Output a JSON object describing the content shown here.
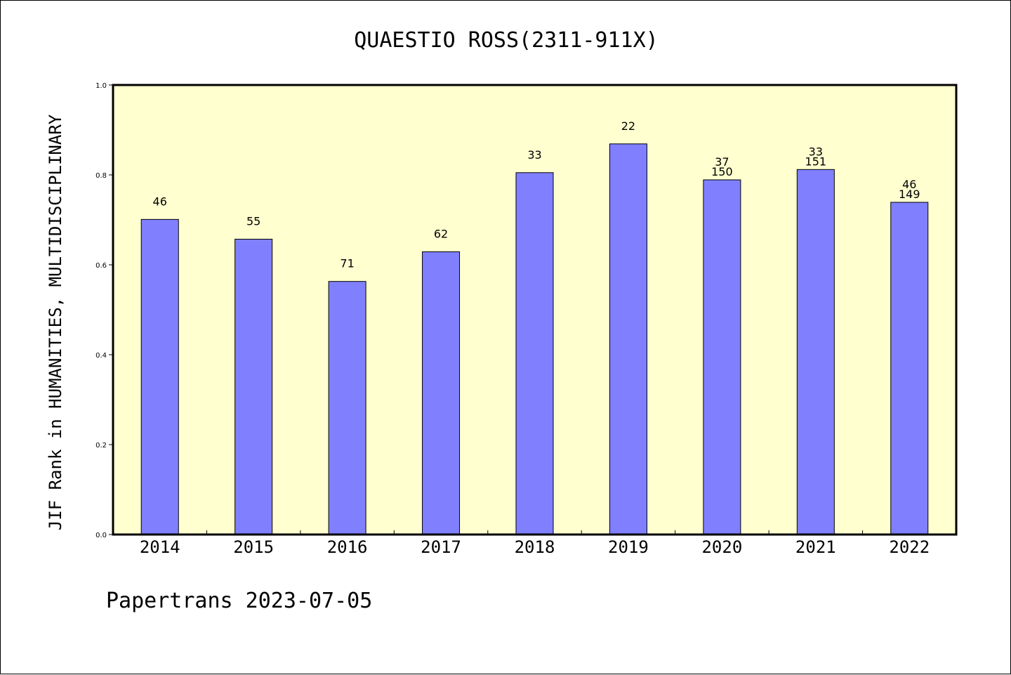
{
  "colors": {
    "plot_background": "#ffffd0",
    "bar_fill": "#8080ff",
    "bar_stroke": "#000000",
    "frame": "#000000"
  },
  "footer": {
    "text": "Papertrans 2023-07-05"
  },
  "chart_data": {
    "type": "bar",
    "title": "QUAESTIO ROSS(2311-911X)",
    "xlabel": "",
    "ylabel": "JIF Rank in HUMANITIES, MULTIDISCIPLINARY",
    "ylim": [
      0.0,
      1.0
    ],
    "yticks": [
      "0.0",
      "0.2",
      "0.4",
      "0.6",
      "0.8",
      "1.0"
    ],
    "grid": false,
    "legend": "none",
    "categories": [
      "2014",
      "2015",
      "2016",
      "2017",
      "2018",
      "2019",
      "2020",
      "2021",
      "2022"
    ],
    "values": [
      0.701,
      0.657,
      0.563,
      0.629,
      0.805,
      0.869,
      0.789,
      0.812,
      0.739
    ],
    "labels": [
      [
        "46"
      ],
      [
        "55"
      ],
      [
        "71"
      ],
      [
        "62"
      ],
      [
        "33"
      ],
      [
        "22"
      ],
      [
        "37",
        "150"
      ],
      [
        "33",
        "151"
      ],
      [
        "46",
        "149"
      ]
    ]
  }
}
